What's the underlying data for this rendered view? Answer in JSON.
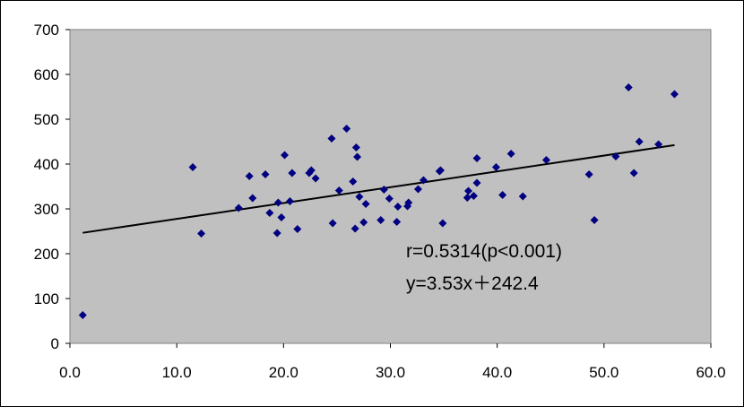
{
  "chart_data": {
    "type": "scatter",
    "title": "",
    "xlabel": "",
    "ylabel": "",
    "xlim": [
      0,
      60
    ],
    "ylim": [
      0,
      700
    ],
    "x_ticks": [
      "0.0",
      "10.0",
      "20.0",
      "30.0",
      "40.0",
      "50.0",
      "60.0"
    ],
    "y_ticks": [
      "0",
      "100",
      "200",
      "300",
      "400",
      "500",
      "600",
      "700"
    ],
    "grid": false,
    "plot_background": "#C0C0C0",
    "marker_color": "#000080",
    "marker": "diamond",
    "points": [
      [
        1.2,
        63
      ],
      [
        11.5,
        393
      ],
      [
        12.3,
        245
      ],
      [
        15.8,
        302
      ],
      [
        16.8,
        373
      ],
      [
        17.1,
        324
      ],
      [
        18.3,
        377
      ],
      [
        18.7,
        291
      ],
      [
        19.4,
        246
      ],
      [
        19.5,
        314
      ],
      [
        19.8,
        281
      ],
      [
        20.1,
        420
      ],
      [
        20.6,
        317
      ],
      [
        20.8,
        380
      ],
      [
        21.3,
        255
      ],
      [
        22.4,
        380
      ],
      [
        22.6,
        386
      ],
      [
        23.0,
        368
      ],
      [
        24.5,
        457
      ],
      [
        24.6,
        268
      ],
      [
        25.2,
        341
      ],
      [
        25.9,
        479
      ],
      [
        26.5,
        361
      ],
      [
        26.7,
        256
      ],
      [
        26.8,
        437
      ],
      [
        26.9,
        416
      ],
      [
        27.1,
        327
      ],
      [
        27.5,
        270
      ],
      [
        27.7,
        311
      ],
      [
        29.1,
        275
      ],
      [
        29.4,
        343
      ],
      [
        29.9,
        323
      ],
      [
        30.6,
        271
      ],
      [
        30.7,
        305
      ],
      [
        31.6,
        306
      ],
      [
        31.7,
        314
      ],
      [
        32.6,
        344
      ],
      [
        33.1,
        364
      ],
      [
        34.6,
        384
      ],
      [
        34.7,
        386
      ],
      [
        34.9,
        268
      ],
      [
        37.2,
        325
      ],
      [
        37.3,
        340
      ],
      [
        37.8,
        329
      ],
      [
        38.1,
        413
      ],
      [
        38.1,
        358
      ],
      [
        39.9,
        393
      ],
      [
        40.5,
        331
      ],
      [
        41.3,
        423
      ],
      [
        42.4,
        328
      ],
      [
        44.6,
        409
      ],
      [
        48.6,
        377
      ],
      [
        49.1,
        275
      ],
      [
        51.1,
        417
      ],
      [
        52.3,
        571
      ],
      [
        52.8,
        380
      ],
      [
        53.3,
        450
      ],
      [
        55.1,
        444
      ],
      [
        56.6,
        556
      ]
    ],
    "trendline": {
      "slope": 3.53,
      "intercept": 242.4,
      "x_range": [
        1.2,
        56.6
      ]
    },
    "annotations": [
      "r=0.5314(p<0.001)",
      "y=3.53x＋242.4"
    ]
  }
}
